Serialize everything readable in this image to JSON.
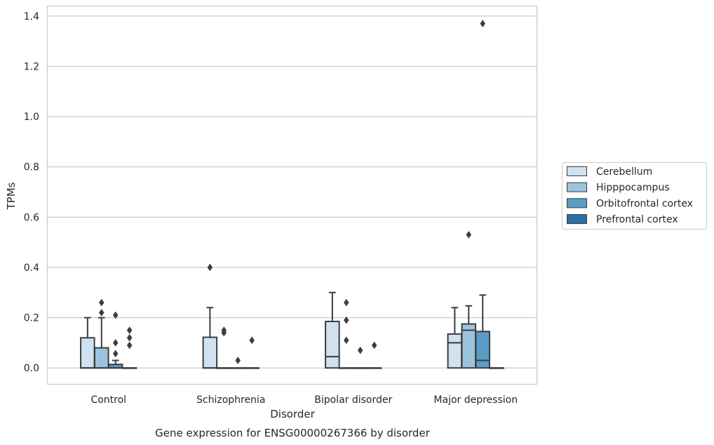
{
  "chart_data": {
    "type": "box",
    "title": "",
    "caption": "Gene expression for ENSG00000267366 by disorder",
    "xlabel": "Disorder",
    "ylabel": "TPMs",
    "ylim": [
      -0.065,
      1.44
    ],
    "yticks": [
      "0.0",
      "0.2",
      "0.4",
      "0.6",
      "0.8",
      "1.0",
      "1.2",
      "1.4"
    ],
    "grid": true,
    "legend_position": "right",
    "categories": [
      "Control",
      "Schizophrenia",
      "Bipolar disorder",
      "Major depression"
    ],
    "series": [
      {
        "name": "Cerebellum",
        "color": "#d0e1f0",
        "boxes": [
          {
            "q1": 0,
            "median": 0,
            "q3": 0.12,
            "whisker_low": 0,
            "whisker_high": 0.2,
            "outliers": []
          },
          {
            "q1": 0,
            "median": 0,
            "q3": 0.122,
            "whisker_low": 0,
            "whisker_high": 0.24,
            "outliers": [
              0.4
            ]
          },
          {
            "q1": 0,
            "median": 0.045,
            "q3": 0.185,
            "whisker_low": 0,
            "whisker_high": 0.3,
            "outliers": []
          },
          {
            "q1": 0,
            "median": 0.1,
            "q3": 0.135,
            "whisker_low": 0,
            "whisker_high": 0.24,
            "outliers": []
          }
        ]
      },
      {
        "name": "Hipppocampus",
        "color": "#9cc3de",
        "boxes": [
          {
            "q1": 0,
            "median": 0,
            "q3": 0.08,
            "whisker_low": 0,
            "whisker_high": 0.2,
            "outliers": [
              0.26,
              0.22
            ]
          },
          {
            "q1": 0,
            "median": 0,
            "q3": 0,
            "whisker_low": 0,
            "whisker_high": 0,
            "outliers": [
              0.15,
              0.14
            ]
          },
          {
            "q1": 0,
            "median": 0,
            "q3": 0,
            "whisker_low": 0,
            "whisker_high": 0,
            "outliers": [
              0.26,
              0.19,
              0.11
            ]
          },
          {
            "q1": 0,
            "median": 0.15,
            "q3": 0.175,
            "whisker_low": 0,
            "whisker_high": 0.247,
            "outliers": [
              0.53
            ]
          }
        ]
      },
      {
        "name": "Orbitofrontal cortex",
        "color": "#5b9cc6",
        "boxes": [
          {
            "q1": 0,
            "median": 0,
            "q3": 0.014,
            "whisker_low": 0,
            "whisker_high": 0.03,
            "outliers": [
              0.21,
              0.1,
              0.057
            ]
          },
          {
            "q1": 0,
            "median": 0,
            "q3": 0,
            "whisker_low": 0,
            "whisker_high": 0,
            "outliers": [
              0.03
            ]
          },
          {
            "q1": 0,
            "median": 0,
            "q3": 0,
            "whisker_low": 0,
            "whisker_high": 0,
            "outliers": [
              0.07
            ]
          },
          {
            "q1": 0,
            "median": 0.03,
            "q3": 0.145,
            "whisker_low": 0,
            "whisker_high": 0.29,
            "outliers": [
              1.37
            ]
          }
        ]
      },
      {
        "name": "Prefrontal cortex",
        "color": "#2c6ea8",
        "boxes": [
          {
            "q1": 0,
            "median": 0,
            "q3": 0,
            "whisker_low": 0,
            "whisker_high": 0,
            "outliers": [
              0.15,
              0.12,
              0.09
            ]
          },
          {
            "q1": 0,
            "median": 0,
            "q3": 0,
            "whisker_low": 0,
            "whisker_high": 0,
            "outliers": [
              0.11
            ]
          },
          {
            "q1": 0,
            "median": 0,
            "q3": 0,
            "whisker_low": 0,
            "whisker_high": 0,
            "outliers": [
              0.09
            ]
          },
          {
            "q1": 0,
            "median": 0,
            "q3": 0,
            "whisker_low": 0,
            "whisker_high": 0,
            "outliers": []
          }
        ]
      }
    ]
  }
}
